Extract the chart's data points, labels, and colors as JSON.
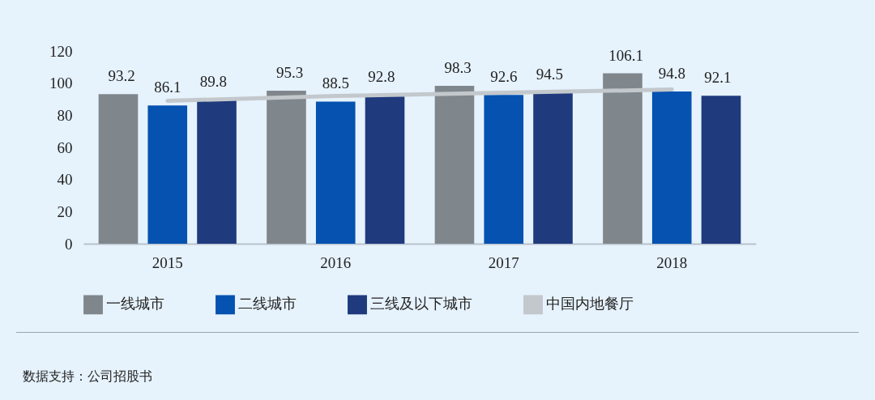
{
  "chart_data": {
    "type": "bar",
    "categories": [
      "2015",
      "2016",
      "2017",
      "2018"
    ],
    "series": [
      {
        "name": "一线城市",
        "color": "#80878c",
        "values": [
          93.2,
          95.3,
          98.3,
          106.1
        ],
        "value_labels": [
          "93.2",
          "95.3",
          "98.3",
          "106.1"
        ]
      },
      {
        "name": "二线城市",
        "color": "#0552b0",
        "values": [
          86.1,
          88.5,
          92.6,
          94.8
        ],
        "value_labels": [
          "86.1",
          "88.5",
          "92.6",
          "94.8"
        ]
      },
      {
        "name": "三线及以下城市",
        "color": "#1f3a7d",
        "values": [
          89.8,
          92.8,
          94.5,
          92.1
        ],
        "value_labels": [
          "89.8",
          "92.8",
          "94.5",
          "92.1"
        ]
      },
      {
        "name": "中国内地餐厅",
        "color": "#c3c8cc",
        "type": "line",
        "values": [
          89,
          92,
          94,
          96
        ]
      }
    ],
    "ylim": [
      0,
      120
    ],
    "yticks": [
      0,
      20,
      40,
      60,
      80,
      100,
      120
    ],
    "grid": false,
    "legend": "bottom",
    "marker": "none",
    "line_style": "solid",
    "annotations": [
      "数据支持：公司招股书"
    ]
  }
}
